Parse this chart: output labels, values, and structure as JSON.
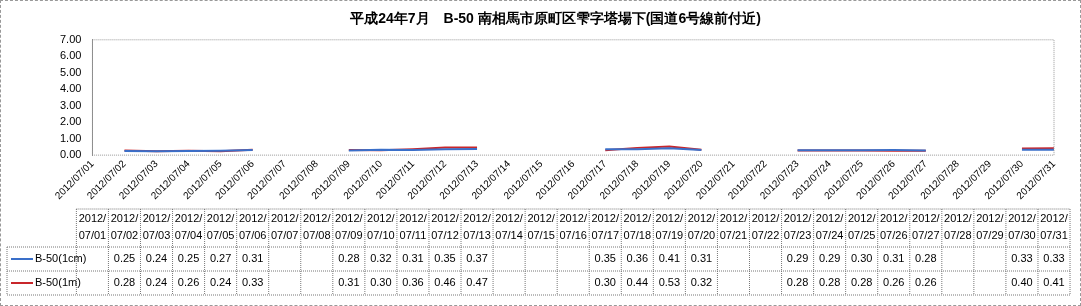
{
  "chart_data": {
    "type": "line",
    "title": "平成24年7月　B-50 南相馬市原町区雫字塔場下(国道6号線前付近)",
    "categories": [
      "2012/07/01",
      "2012/07/02",
      "2012/07/03",
      "2012/07/04",
      "2012/07/05",
      "2012/07/06",
      "2012/07/07",
      "2012/07/08",
      "2012/07/09",
      "2012/07/10",
      "2012/07/11",
      "2012/07/12",
      "2012/07/13",
      "2012/07/14",
      "2012/07/15",
      "2012/07/16",
      "2012/07/17",
      "2012/07/18",
      "2012/07/19",
      "2012/07/20",
      "2012/07/21",
      "2012/07/22",
      "2012/07/23",
      "2012/07/24",
      "2012/07/25",
      "2012/07/26",
      "2012/07/27",
      "2012/07/28",
      "2012/07/29",
      "2012/07/30",
      "2012/07/31"
    ],
    "series": [
      {
        "name": "B-50(1cm)",
        "color": "#3a6fc9",
        "values": [
          null,
          0.25,
          0.24,
          0.25,
          0.27,
          0.31,
          null,
          null,
          0.28,
          0.32,
          0.31,
          0.35,
          0.37,
          null,
          null,
          null,
          0.35,
          0.36,
          0.41,
          0.31,
          null,
          null,
          0.29,
          0.29,
          0.3,
          0.31,
          0.28,
          null,
          null,
          0.33,
          0.33
        ],
        "value_labels": [
          null,
          "0.25",
          "0.24",
          "0.25",
          "0.27",
          "0.31",
          null,
          null,
          "0.28",
          "0.32",
          "0.31",
          "0.35",
          "0.37",
          null,
          null,
          null,
          "0.35",
          "0.36",
          "0.41",
          "0.31",
          null,
          null,
          "0.29",
          "0.29",
          "0.30",
          "0.31",
          "0.28",
          null,
          null,
          "0.33",
          "0.33"
        ]
      },
      {
        "name": "B-50(1m)",
        "color": "#c8262b",
        "values": [
          null,
          0.28,
          0.24,
          0.26,
          0.24,
          0.33,
          null,
          null,
          0.31,
          0.3,
          0.36,
          0.46,
          0.47,
          null,
          null,
          null,
          0.3,
          0.44,
          0.53,
          0.32,
          null,
          null,
          0.28,
          0.28,
          0.28,
          0.26,
          0.26,
          null,
          null,
          0.4,
          0.41
        ],
        "value_labels": [
          null,
          "0.28",
          "0.24",
          "0.26",
          "0.24",
          "0.33",
          null,
          null,
          "0.31",
          "0.30",
          "0.36",
          "0.46",
          "0.47",
          null,
          null,
          null,
          "0.30",
          "0.44",
          "0.53",
          "0.32",
          null,
          null,
          "0.28",
          "0.28",
          "0.28",
          "0.26",
          "0.26",
          null,
          null,
          "0.40",
          "0.41"
        ]
      }
    ],
    "ylim": [
      0,
      7
    ],
    "yticks": [
      {
        "value": 0,
        "label": "0.00"
      },
      {
        "value": 1,
        "label": "1.00"
      },
      {
        "value": 2,
        "label": "2.00"
      },
      {
        "value": 3,
        "label": "3.00"
      },
      {
        "value": 4,
        "label": "4.00"
      },
      {
        "value": 5,
        "label": "5.00"
      },
      {
        "value": 6,
        "label": "6.00"
      },
      {
        "value": 7,
        "label": "7.00"
      }
    ],
    "grid": false,
    "legend": "bottom left",
    "marker": "none",
    "line_style": "solid"
  }
}
